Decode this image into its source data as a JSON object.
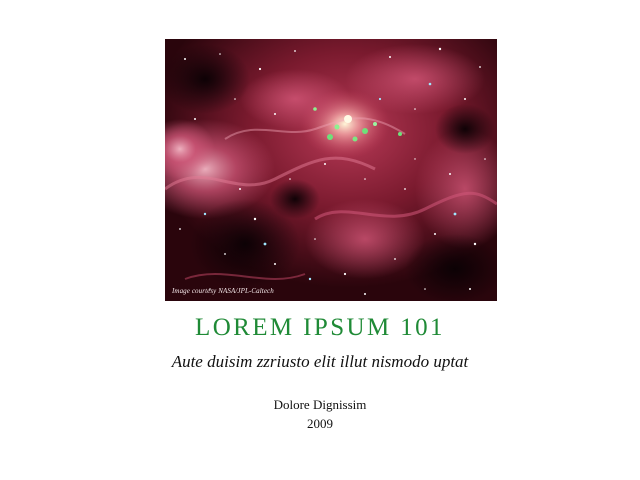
{
  "cover": {
    "image_credit": "Image courtesy NASA/JPL-Caltech"
  },
  "title": "LOREM IPSUM 101",
  "subtitle": "Aute duisim zzriusto elit illut nismodo uptat",
  "author": "Dolore Dignissim",
  "year": "2009",
  "colors": {
    "title": "#1f8a36",
    "text": "#111111",
    "background": "#ffffff"
  }
}
